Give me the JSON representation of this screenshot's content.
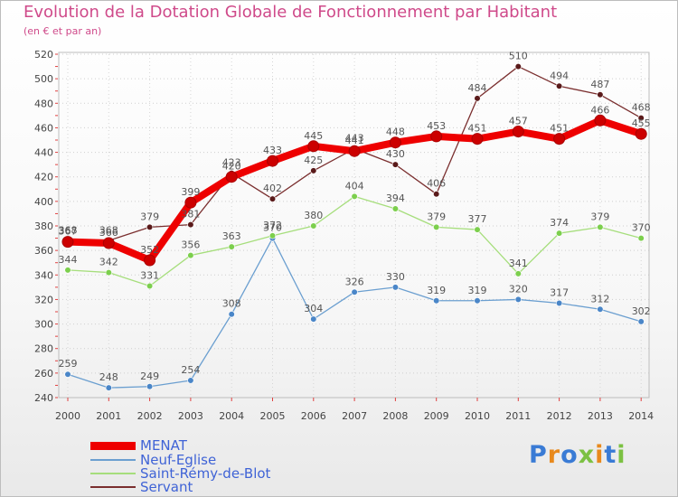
{
  "header": {
    "title": "Evolution de la Dotation Globale de Fonctionnement par Habitant",
    "subtitle": "(en € et par an)"
  },
  "logo": {
    "text": "Proxiti"
  },
  "chart_data": {
    "type": "line",
    "title": "Evolution de la Dotation Globale de Fonctionnement par Habitant",
    "subtitle": "(en € et par an)",
    "xlabel": "",
    "ylabel": "",
    "x": [
      "2000",
      "2001",
      "2002",
      "2003",
      "2004",
      "2005",
      "2006",
      "2007",
      "2008",
      "2009",
      "2010",
      "2011",
      "2012",
      "2013",
      "2014"
    ],
    "ylim": [
      240,
      520
    ],
    "yticks": [
      "240",
      "260",
      "280",
      "300",
      "320",
      "340",
      "360",
      "380",
      "400",
      "420",
      "440",
      "460",
      "480",
      "500",
      "520"
    ],
    "grid": true,
    "legend_position": "bottom-left",
    "series": [
      {
        "name": "MENAT",
        "color": "#ee0000",
        "marker": "#cc0000",
        "values": [
          367,
          366,
          352,
          399,
          420,
          433,
          445,
          441,
          448,
          453,
          451,
          457,
          451,
          466,
          455
        ],
        "labels": [
          "367",
          "366",
          "352",
          "399",
          "420",
          "433",
          "445",
          "441",
          "448",
          "453",
          "451",
          "457",
          "451",
          "466",
          "455"
        ]
      },
      {
        "name": "Neuf-Eglise",
        "color": "#6b9fd0",
        "marker": "#4a86c8",
        "values": [
          259,
          248,
          249,
          254,
          308,
          370,
          304,
          326,
          330,
          319,
          319,
          320,
          317,
          312,
          302
        ],
        "labels": [
          "259",
          "248",
          "249",
          "254",
          "308",
          "370",
          "304",
          "326",
          "330",
          "319",
          "319",
          "320",
          "317",
          "312",
          "302"
        ]
      },
      {
        "name": "Saint-Rémy-de-Blot",
        "color": "#a6de7c",
        "marker": "#7ccf4d",
        "values": [
          344,
          342,
          331,
          356,
          363,
          372,
          380,
          404,
          394,
          379,
          377,
          341,
          374,
          379,
          370
        ],
        "labels": [
          "344",
          "342",
          "331",
          "356",
          "363",
          "372",
          "380",
          "404",
          "394",
          "379",
          "377",
          "341",
          "374",
          "379",
          "370"
        ]
      },
      {
        "name": "Servant",
        "color": "#7a2e2e",
        "marker": "#5a1a1a",
        "values": [
          368,
          368,
          379,
          381,
          423,
          402,
          425,
          443,
          430,
          406,
          484,
          510,
          494,
          487,
          468
        ],
        "labels": [
          "368",
          "368",
          "379",
          "381",
          "423",
          "402",
          "425",
          "443",
          "430",
          "406",
          "484",
          "510",
          "494",
          "487",
          "468"
        ]
      }
    ]
  }
}
